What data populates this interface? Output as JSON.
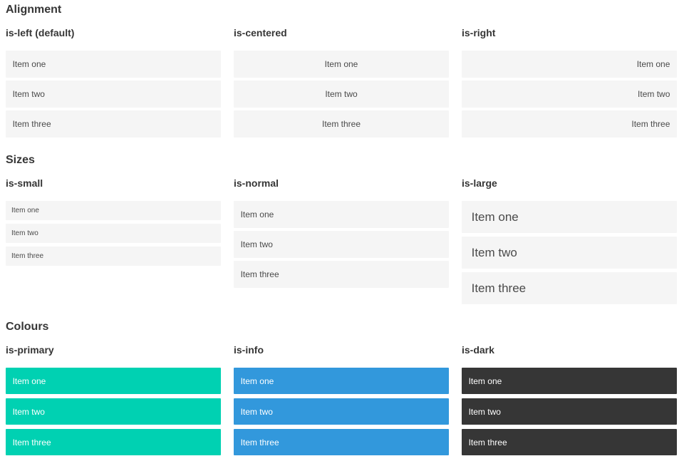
{
  "colors": {
    "primary": "#00d1b2",
    "info": "#3298dc",
    "dark": "#363636",
    "item_background": "#f5f5f5",
    "item_text": "#4a4a4a",
    "heading_text": "#363636",
    "coloured_item_text": "#ffffff"
  },
  "sections": [
    {
      "title": "Alignment",
      "groups": [
        {
          "label": "is-left (default)",
          "items": [
            "Item one",
            "Item two",
            "Item three"
          ]
        },
        {
          "label": "is-centered",
          "items": [
            "Item one",
            "Item two",
            "Item three"
          ]
        },
        {
          "label": "is-right",
          "items": [
            "Item one",
            "Item two",
            "Item three"
          ]
        }
      ]
    },
    {
      "title": "Sizes",
      "groups": [
        {
          "label": "is-small",
          "items": [
            "Item one",
            "Item two",
            "Item three"
          ]
        },
        {
          "label": "is-normal",
          "items": [
            "Item one",
            "Item two",
            "Item three"
          ]
        },
        {
          "label": "is-large",
          "items": [
            "Item one",
            "Item two",
            "Item three"
          ]
        }
      ]
    },
    {
      "title": "Colours",
      "groups": [
        {
          "label": "is-primary",
          "items": [
            "Item one",
            "Item two",
            "Item three"
          ]
        },
        {
          "label": "is-info",
          "items": [
            "Item one",
            "Item two",
            "Item three"
          ]
        },
        {
          "label": "is-dark",
          "items": [
            "Item one",
            "Item two",
            "Item three"
          ]
        }
      ]
    }
  ]
}
